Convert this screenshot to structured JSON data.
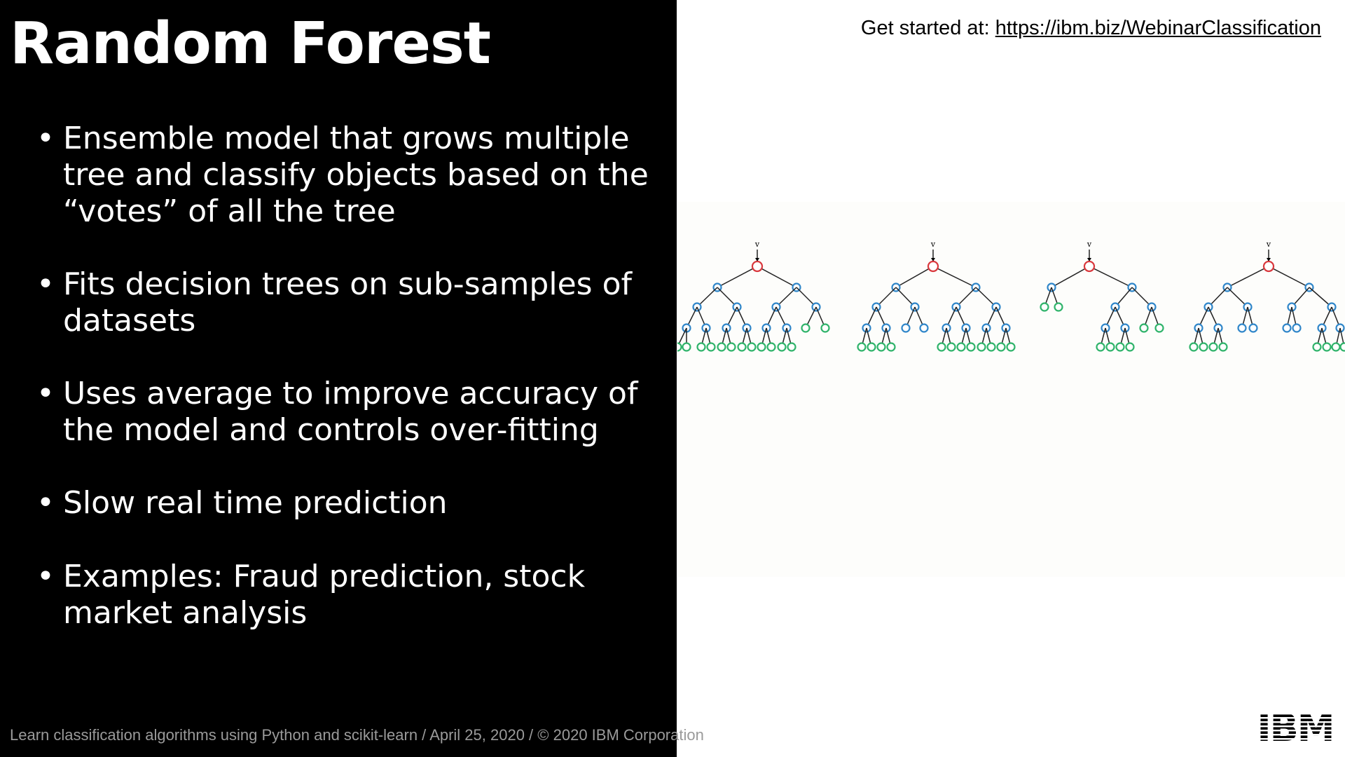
{
  "slide": {
    "title": "Random Forest",
    "bullet_char": "•",
    "bullets": [
      "Ensemble model that grows multiple tree and classify objects based on the “votes” of all the tree",
      "Fits decision trees on sub-samples of datasets",
      "Uses average to improve accuracy of the model and controls over-fitting",
      "Slow real time prediction",
      "Examples: Fraud prediction, stock market analysis"
    ],
    "get_started_label": "Get started at:",
    "get_started_url": "https://ibm.biz/WebinarClassification",
    "footer": "Learn classification algorithms using Python and scikit-learn / April 25, 2020 / © 2020 IBM Corporation",
    "logo": "IBM",
    "tree_root_marker": "v"
  },
  "colors": {
    "left_background": "#000000",
    "right_background": "#ffffff",
    "root_node": "#d9383d",
    "inner_node": "#2f86c9",
    "leaf_node": "#2fb36a",
    "edge": "#222222"
  },
  "icons": {
    "logo": "ibm-logo",
    "tree": "decision-tree-icon"
  }
}
